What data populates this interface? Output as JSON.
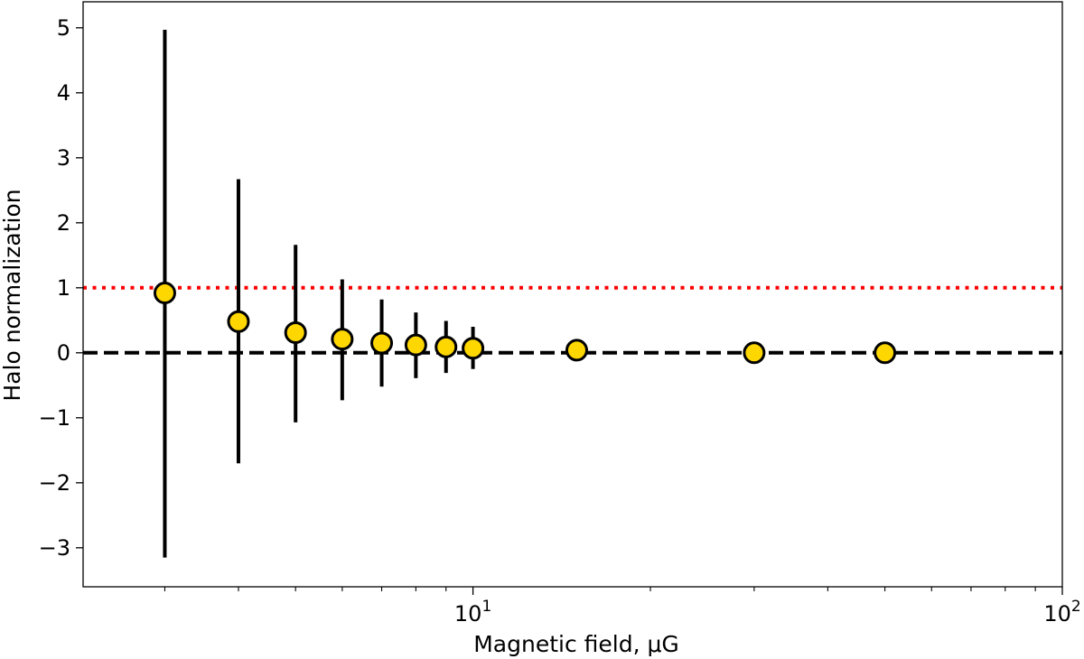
{
  "chart_data": {
    "type": "scatter",
    "title": "",
    "xlabel": "Magnetic field, μG",
    "ylabel": "Halo normalization",
    "xscale": "log",
    "xlim": [
      2.18,
      100
    ],
    "ylim": [
      -3.6,
      5.4
    ],
    "grid": false,
    "legend": "none",
    "y_ticks": [
      {
        "value": 5,
        "label": "5"
      },
      {
        "value": 4,
        "label": "4"
      },
      {
        "value": 3,
        "label": "3"
      },
      {
        "value": 2,
        "label": "2"
      },
      {
        "value": 1,
        "label": "1"
      },
      {
        "value": 0,
        "label": "0"
      },
      {
        "value": -1,
        "label": "−1"
      },
      {
        "value": -2,
        "label": "−2"
      },
      {
        "value": -3,
        "label": "−3"
      }
    ],
    "x_major_ticks": [
      {
        "value": 10,
        "base": "10",
        "exp": "1"
      },
      {
        "value": 100,
        "base": "10",
        "exp": "2"
      }
    ],
    "x_minor_ticks": [
      3,
      4,
      5,
      6,
      7,
      8,
      9,
      20,
      30,
      40,
      50,
      60,
      70,
      80,
      90
    ],
    "reference_lines": [
      {
        "y": 1,
        "style": "dotted",
        "color": "#ff0000"
      },
      {
        "y": 0,
        "style": "dashed",
        "color": "#000000"
      }
    ],
    "points": [
      {
        "x": 3,
        "y": 0.92,
        "lower": -3.15,
        "upper": 4.97
      },
      {
        "x": 4,
        "y": 0.48,
        "lower": -1.7,
        "upper": 2.67
      },
      {
        "x": 5,
        "y": 0.31,
        "lower": -1.07,
        "upper": 1.66
      },
      {
        "x": 6,
        "y": 0.21,
        "lower": -0.73,
        "upper": 1.13
      },
      {
        "x": 7,
        "y": 0.15,
        "lower": -0.52,
        "upper": 0.82
      },
      {
        "x": 8,
        "y": 0.12,
        "lower": -0.39,
        "upper": 0.62
      },
      {
        "x": 9,
        "y": 0.09,
        "lower": -0.31,
        "upper": 0.49
      },
      {
        "x": 10,
        "y": 0.07,
        "lower": -0.25,
        "upper": 0.4
      },
      {
        "x": 15,
        "y": 0.04,
        "lower": 0.04,
        "upper": 0.04
      },
      {
        "x": 30,
        "y": 0.0,
        "lower": 0.0,
        "upper": 0.0
      },
      {
        "x": 50,
        "y": 0.0,
        "lower": 0.0,
        "upper": 0.0
      }
    ],
    "colors": {
      "marker_fill": "#ffd700",
      "marker_edge": "#000000",
      "errorbar": "#000000"
    }
  }
}
